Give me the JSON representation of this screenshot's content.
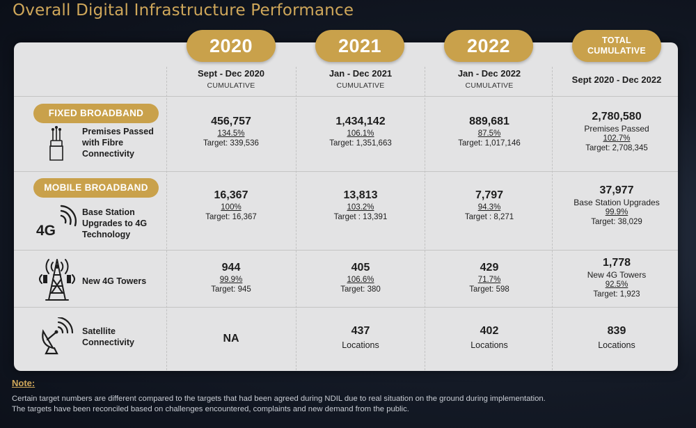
{
  "title": "Overall Digital Infrastructure Performance",
  "columns": [
    {
      "year": "2020",
      "period": "Sept - Dec 2020",
      "sub": "CUMULATIVE"
    },
    {
      "year": "2021",
      "period": "Jan - Dec 2021",
      "sub": "CUMULATIVE"
    },
    {
      "year": "2022",
      "period": "Jan - Dec 2022",
      "sub": "CUMULATIVE"
    }
  ],
  "total": {
    "line1": "TOTAL",
    "line2": "CUMULATIVE",
    "period": "Sept 2020 - Dec 2022"
  },
  "categories": {
    "fixed": "FIXED BROADBAND",
    "mobile": "MOBILE BROADBAND"
  },
  "rows": [
    {
      "icon": "fibre-connector-icon",
      "label": [
        "Premises Passed",
        "with Fibre",
        "Connectivity"
      ],
      "cells": [
        {
          "value": "456,757",
          "pct": "134.5%",
          "target": "Target: 339,536"
        },
        {
          "value": "1,434,142",
          "pct": "106.1%",
          "target": "Target: 1,351,663"
        },
        {
          "value": "889,681",
          "pct": "87.5%",
          "target": "Target: 1,017,146"
        }
      ],
      "total": {
        "value": "2,780,580",
        "desc": "Premises Passed",
        "pct": "102.7%",
        "target": "Target: 2,708,345"
      }
    },
    {
      "icon": "4g-signal-icon",
      "icon_text": "4G",
      "label": [
        "Base Station",
        "Upgrades to 4G",
        "Technology"
      ],
      "cells": [
        {
          "value": "16,367",
          "pct": "100%",
          "target": "Target: 16,367"
        },
        {
          "value": "13,813",
          "pct": "103.2%",
          "target": "Target : 13,391"
        },
        {
          "value": "7,797",
          "pct": "94.3%",
          "target": "Target : 8,271"
        }
      ],
      "total": {
        "value": "37,977",
        "desc": "Base Station Upgrades",
        "pct": "99.9%",
        "target": "Target: 38,029"
      }
    },
    {
      "icon": "cell-tower-icon",
      "label": [
        "New 4G Towers"
      ],
      "cells": [
        {
          "value": "944",
          "pct": "99.9%",
          "target": "Target: 945"
        },
        {
          "value": "405",
          "pct": "106.6%",
          "target": "Target: 380"
        },
        {
          "value": "429",
          "pct": "71.7%",
          "target": "Target: 598"
        }
      ],
      "total": {
        "value": "1,778",
        "desc": "New 4G Towers",
        "pct": "92.5%",
        "target": "Target: 1,923"
      }
    },
    {
      "icon": "satellite-dish-icon",
      "label": [
        "Satellite",
        "Connectivity"
      ],
      "cells": [
        {
          "value": "NA"
        },
        {
          "value": "437",
          "loc": "Locations"
        },
        {
          "value": "402",
          "loc": "Locations"
        }
      ],
      "total": {
        "value": "839",
        "loc": "Locations"
      }
    }
  ],
  "note": {
    "heading": "Note:",
    "line1": "Certain target numbers are different compared to the targets that had been agreed during NDIL due to real situation on the ground during implementation.",
    "line2": "The targets have been reconciled based on challenges encountered, complaints and new demand from the public."
  }
}
